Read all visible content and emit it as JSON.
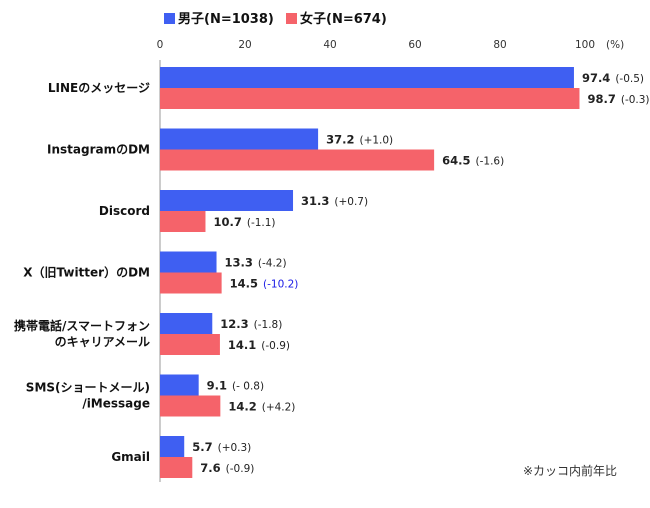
{
  "chart_data": {
    "type": "bar",
    "orientation": "horizontal",
    "categories": [
      [
        "LINEのメッセージ"
      ],
      [
        "InstagramのDM"
      ],
      [
        "Discord"
      ],
      [
        "X（旧Twitter）のDM"
      ],
      [
        "携帯電話/スマートフォン",
        "のキャリアメール"
      ],
      [
        "SMS(ショートメール)",
        "/iMessage"
      ],
      [
        "Gmail"
      ]
    ],
    "series": [
      {
        "name": "男子(N=1038)",
        "color": "#3f5ff2",
        "values": [
          97.4,
          37.2,
          31.3,
          13.3,
          12.3,
          9.1,
          5.7
        ],
        "changes": [
          "(-0.5)",
          "(+1.0)",
          "(+0.7)",
          "(-4.2)",
          "(-1.8)",
          "(- 0.8)",
          "(+0.3)"
        ],
        "change_colors": [
          "#222222",
          "#222222",
          "#222222",
          "#222222",
          "#222222",
          "#222222",
          "#222222"
        ]
      },
      {
        "name": "女子(N=674)",
        "color": "#f5636a",
        "values": [
          98.7,
          64.5,
          10.7,
          14.5,
          14.1,
          14.2,
          7.6
        ],
        "changes": [
          "(-0.3)",
          "(-1.6)",
          "(-1.1)",
          "(-10.2)",
          "(-0.9)",
          "(+4.2)",
          "(-0.9)"
        ],
        "change_colors": [
          "#222222",
          "#222222",
          "#222222",
          "#1a1ae6",
          "#222222",
          "#222222",
          "#222222"
        ]
      }
    ],
    "xlim": [
      0,
      100
    ],
    "xticks": [
      0,
      20,
      40,
      60,
      80,
      100
    ],
    "unit": "(%)",
    "legend_position": "top",
    "note": "※カッコ内前年比",
    "grid": false
  }
}
